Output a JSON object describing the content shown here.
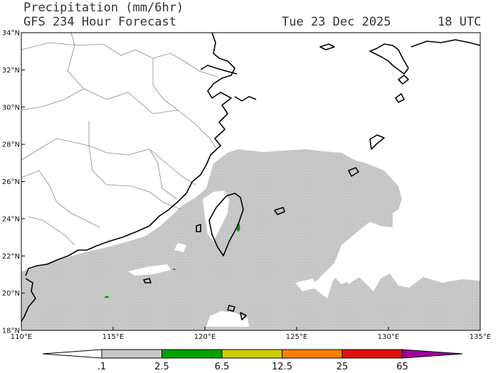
{
  "title": {
    "line1": "Precipitation (mm/6hr)",
    "line2": "GFS 234 Hour Forecast",
    "valid_date": "Tue 23 Dec 2025",
    "valid_time": "18 UTC"
  },
  "map": {
    "lon_range": [
      110,
      135
    ],
    "lat_range": [
      18,
      34
    ],
    "lon_ticks": [
      "110°E",
      "115°E",
      "120°E",
      "125°E",
      "130°E",
      "135°E"
    ],
    "lat_ticks": [
      "18°N",
      "20°N",
      "22°N",
      "24°N",
      "26°N",
      "28°N",
      "30°N",
      "32°N",
      "34°N"
    ],
    "land_color": "#ffffff",
    "coast_color": "#000000",
    "border_color": "#888888"
  },
  "colorbar": {
    "labels": [
      ".1",
      "2.5",
      "6.5",
      "12.5",
      "25",
      "65"
    ],
    "colors": [
      "#ffffff",
      "#c8c8c8",
      "#00a000",
      "#cccc00",
      "#ff7f00",
      "#e01010",
      "#a000a0"
    ]
  }
}
